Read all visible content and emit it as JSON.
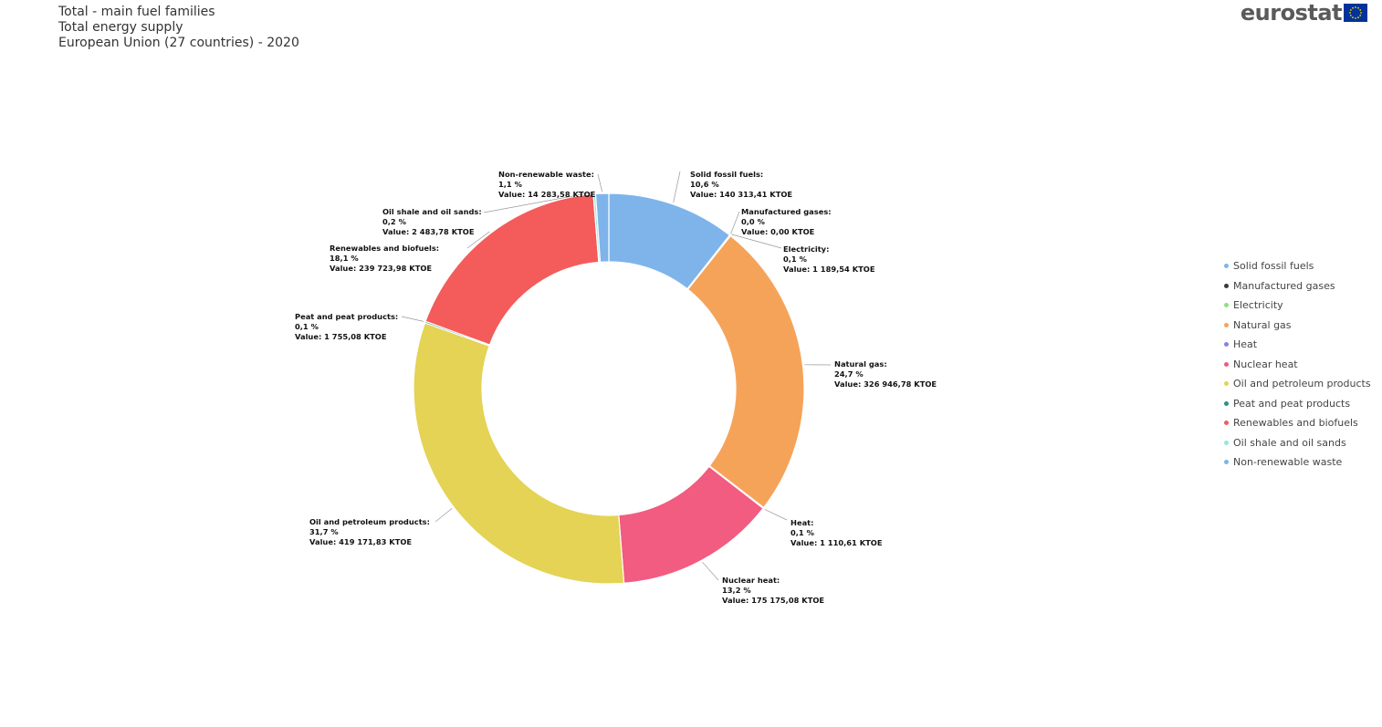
{
  "header": {
    "title_line1": "Total - main fuel families",
    "title_line2": "Total energy supply",
    "title_line3": "European Union (27 countries) - 2020"
  },
  "logo": {
    "text": "eurostat",
    "flag_color": "#003399",
    "star_color": "#FFCC00"
  },
  "chart_data": {
    "type": "pie",
    "style": "donut",
    "unit": "KTOE",
    "title": "",
    "legend_position": "right",
    "slices": [
      {
        "name": "Solid fossil fuels",
        "value": 140313.41,
        "percent_label": "10,6 %",
        "value_label": "Value: 140 313,41 KTOE",
        "label_title": "Solid fossil fuels:",
        "color": "#7EB4EA"
      },
      {
        "name": "Manufactured gases",
        "value": 0.0,
        "percent_label": "0,0 %",
        "value_label": "Value: 0,00 KTOE",
        "label_title": "Manufactured gases:",
        "color": "#3A3A3A"
      },
      {
        "name": "Electricity",
        "value": 1189.54,
        "percent_label": "0,1 %",
        "value_label": "Value: 1 189,54 KTOE",
        "label_title": "Electricity:",
        "color": "#90E07E"
      },
      {
        "name": "Natural gas",
        "value": 326946.78,
        "percent_label": "24,7 %",
        "value_label": "Value: 326 946,78 KTOE",
        "label_title": "Natural gas:",
        "color": "#F6A35A"
      },
      {
        "name": "Heat",
        "value": 1110.61,
        "percent_label": "0,1 %",
        "value_label": "Value: 1 110,61 KTOE",
        "label_title": "Heat:",
        "color": "#8284E6"
      },
      {
        "name": "Nuclear heat",
        "value": 175175.08,
        "percent_label": "13,2 %",
        "value_label": "Value: 175 175,08 KTOE",
        "label_title": "Nuclear heat:",
        "color": "#F15C80"
      },
      {
        "name": "Oil and petroleum products",
        "value": 419171.83,
        "percent_label": "31,7 %",
        "value_label": "Value: 419 171,83 KTOE",
        "label_title": "Oil and petroleum products:",
        "color": "#E4D354"
      },
      {
        "name": "Peat and peat products",
        "value": 1755.08,
        "percent_label": "0,1 %",
        "value_label": "Value: 1 755,08 KTOE",
        "label_title": "Peat and peat products:",
        "color": "#2B908F"
      },
      {
        "name": "Renewables and biofuels",
        "value": 239723.98,
        "percent_label": "18,1 %",
        "value_label": "Value: 239 723,98 KTOE",
        "label_title": "Renewables and biofuels:",
        "color": "#F45B5B"
      },
      {
        "name": "Oil shale and oil sands",
        "value": 2483.78,
        "percent_label": "0,2 %",
        "value_label": "Value: 2 483,78 KTOE",
        "label_title": "Oil shale and oil sands:",
        "color": "#91E8E1"
      },
      {
        "name": "Non-renewable waste",
        "value": 14283.58,
        "percent_label": "1,1 %",
        "value_label": "Value: 14 283,58 KTOE",
        "label_title": "Non-renewable waste:",
        "color": "#7EB4EA"
      }
    ]
  }
}
